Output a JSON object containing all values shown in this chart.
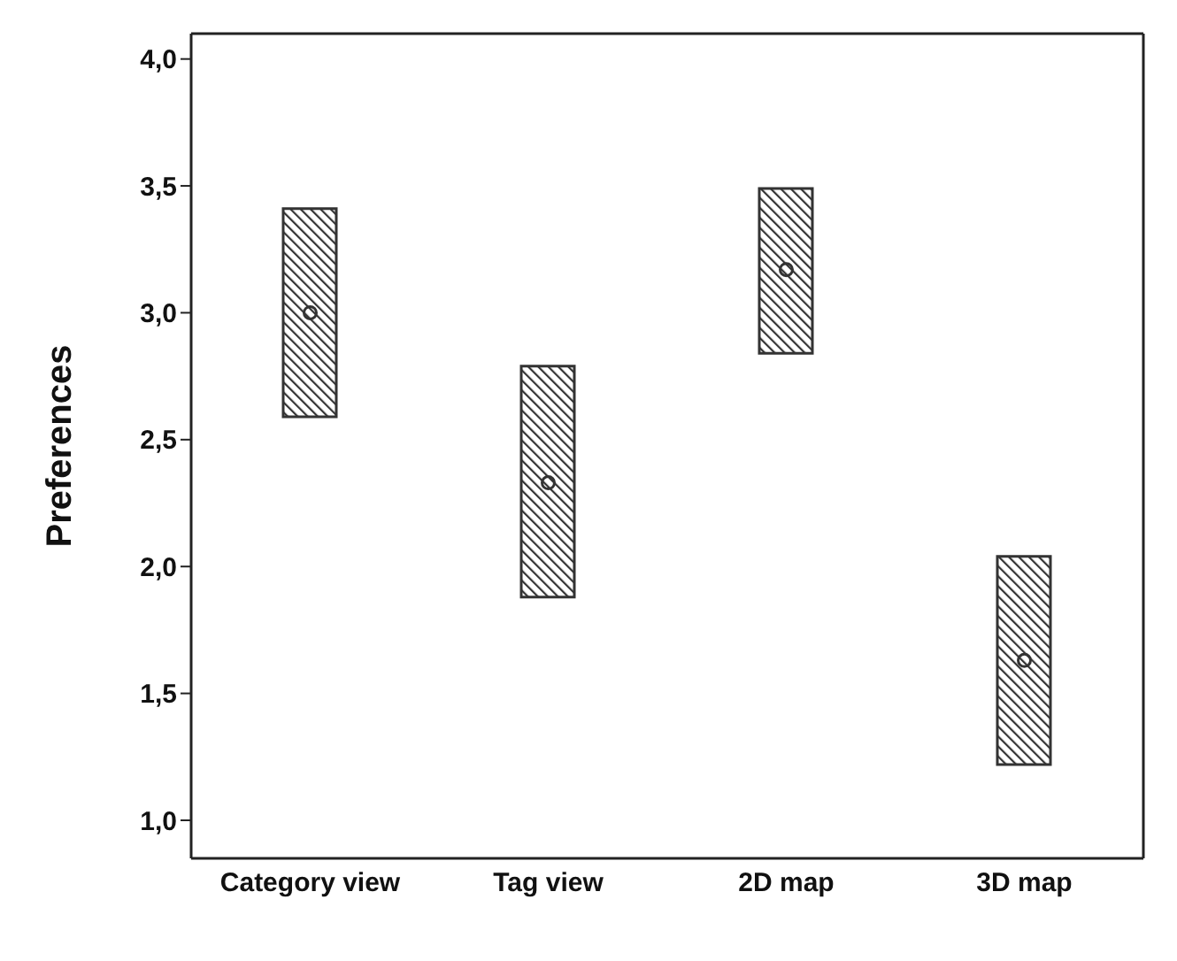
{
  "chart_data": {
    "type": "bar",
    "ylabel": "Preferences",
    "categories": [
      "Category view",
      "Tag view",
      "2D map",
      "3D map"
    ],
    "series": [
      {
        "color": "#333333",
        "base": [
          2.59,
          1.88,
          2.84,
          1.22
        ],
        "values": [
          0.82,
          0.91,
          0.65,
          0.82
        ]
      },
      {
        "type": "scatter",
        "color": "#333333",
        "marker": "circle",
        "x": [
          "Category view",
          "Tag view",
          "2D map",
          "3D map"
        ],
        "values": [
          3.0,
          2.33,
          3.17,
          1.63
        ]
      }
    ],
    "ylim": [
      0.85,
      4.1
    ],
    "yticks": [
      {
        "value": 1,
        "label": "1,0"
      },
      {
        "value": 1.5,
        "label": "1,5"
      },
      {
        "value": 2,
        "label": "2,0"
      },
      {
        "value": 2.5,
        "label": "2,5"
      },
      {
        "value": 3,
        "label": "3,0"
      },
      {
        "value": 3.5,
        "label": "3,5"
      },
      {
        "value": 4,
        "label": "4,0"
      }
    ],
    "grid": false
  }
}
